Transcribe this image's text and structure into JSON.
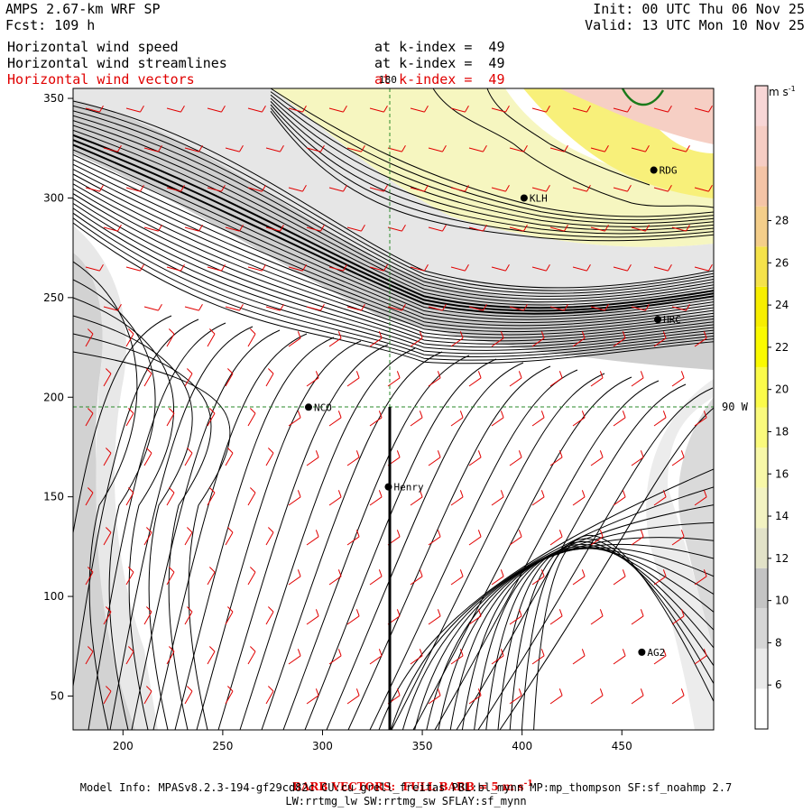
{
  "header": {
    "model": "AMPS 2.67-km WRF SP",
    "forecast": "Fcst: 109 h",
    "init": "Init: 00 UTC Thu 06 Nov 25",
    "valid": "Valid: 13 UTC Mon 10 Nov 25",
    "fields": [
      {
        "label": "Horizontal wind speed",
        "level": "at k-index =  49",
        "color": "#000000"
      },
      {
        "label": "Horizontal wind streamlines",
        "level": "at k-index =  49",
        "color": "#000000"
      },
      {
        "label": "Horizontal wind vectors",
        "level": "at k-index =  49",
        "color": "#e00000"
      }
    ]
  },
  "map": {
    "x_ticks": [
      "200",
      "250",
      "300",
      "350",
      "400",
      "450"
    ],
    "y_ticks": [
      "50",
      "100",
      "150",
      "200",
      "250",
      "300",
      "350"
    ],
    "x_tick_values": [
      200,
      250,
      300,
      350,
      400,
      450
    ],
    "y_tick_values": [
      50,
      100,
      150,
      200,
      250,
      300,
      350
    ],
    "x_range": [
      175,
      496
    ],
    "y_range": [
      33,
      355
    ],
    "grid_labels": {
      "lon_180": "180",
      "lon_90w": "90 W"
    },
    "stations": [
      {
        "name": "RDG",
        "x": 466,
        "y": 314
      },
      {
        "name": "KLH",
        "x": 401,
        "y": 300
      },
      {
        "name": "HRC",
        "x": 468,
        "y": 239
      },
      {
        "name": "NCO",
        "x": 293,
        "y": 195
      },
      {
        "name": "Henry",
        "x": 333,
        "y": 155
      },
      {
        "name": "AG2",
        "x": 460,
        "y": 72
      }
    ],
    "colors": {
      "barbs": "#e00000",
      "streamlines": "#000000",
      "gridlines": "#2a8a2a"
    }
  },
  "colorbar": {
    "units": "m s",
    "units_exp": "-1",
    "labels": [
      "28",
      "26",
      "24",
      "22",
      "20",
      "18",
      "16",
      "14",
      "12",
      "10",
      "8",
      "6"
    ],
    "colors": [
      "#ffffff",
      "#eaeaea",
      "#d6d6d6",
      "#c4c4c4",
      "#e2e2c8",
      "#f3f3c2",
      "#f8f8a8",
      "#fafa7c",
      "#fbfb4a",
      "#fafa00",
      "#f7ee00",
      "#f5e24a",
      "#f4ce8a",
      "#f4c4a6",
      "#f6cdc4",
      "#f8d6d6"
    ]
  },
  "footer": {
    "barb_title": "BARB VECTORS:  FULL BARB = 5 m s",
    "barb_exp": "-1",
    "model_info": "Model Info: MPASv8.2.3-194-gf29cd82c CU:cu_grell_freitas PBL:bl_mynn MP:mp_thompson SF:sf_noahmp 2.7",
    "model_info2": "LW:rrtmg_lw SW:rrtmg_sw SFLAY:sf_mynn"
  }
}
